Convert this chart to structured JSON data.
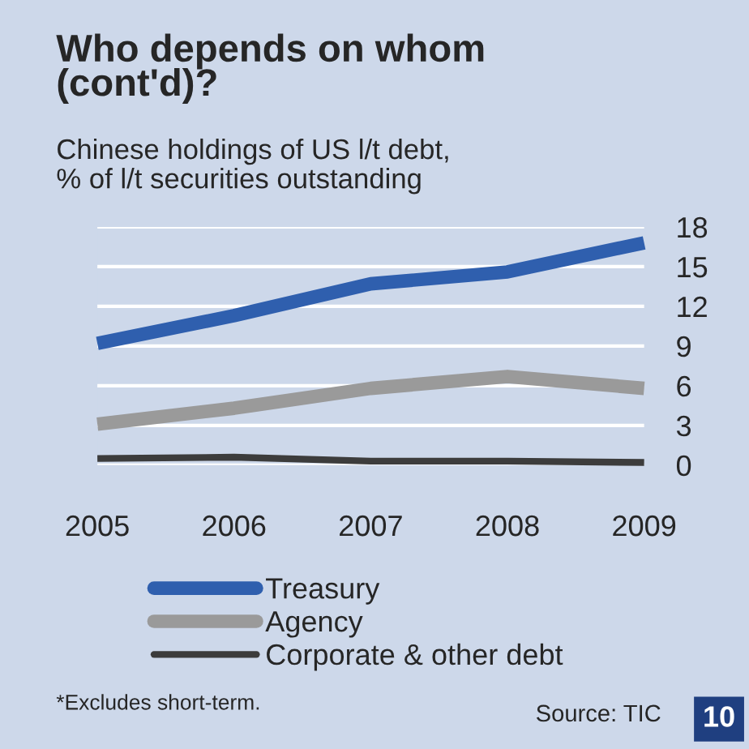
{
  "chart_data": {
    "type": "line",
    "title": "Who depends on whom\n(cont'd)?",
    "subtitle": "Chinese holdings of US l/t debt,\n% of l/t securities outstanding",
    "categories": [
      "2005",
      "2006",
      "2007",
      "2008",
      "2009"
    ],
    "series": [
      {
        "name": "Treasury",
        "color": "#2f5fae",
        "values": [
          9.2,
          11.3,
          13.7,
          14.6,
          16.8
        ]
      },
      {
        "name": "Agency",
        "color": "#9a9a9a",
        "values": [
          3.1,
          4.3,
          5.8,
          6.7,
          5.8
        ]
      },
      {
        "name": "Corporate & other debt",
        "color": "#3c3c3c",
        "values": [
          0.5,
          0.6,
          0.3,
          0.3,
          0.2
        ]
      }
    ],
    "ylim": [
      0,
      18
    ],
    "yticks": [
      0,
      3,
      6,
      9,
      12,
      15,
      18
    ],
    "grid": "y",
    "legend": "bottom left",
    "marker": "none",
    "line_style": "solid",
    "annotations": [
      "*Excludes short-term.",
      "Source: TIC",
      "10"
    ]
  }
}
